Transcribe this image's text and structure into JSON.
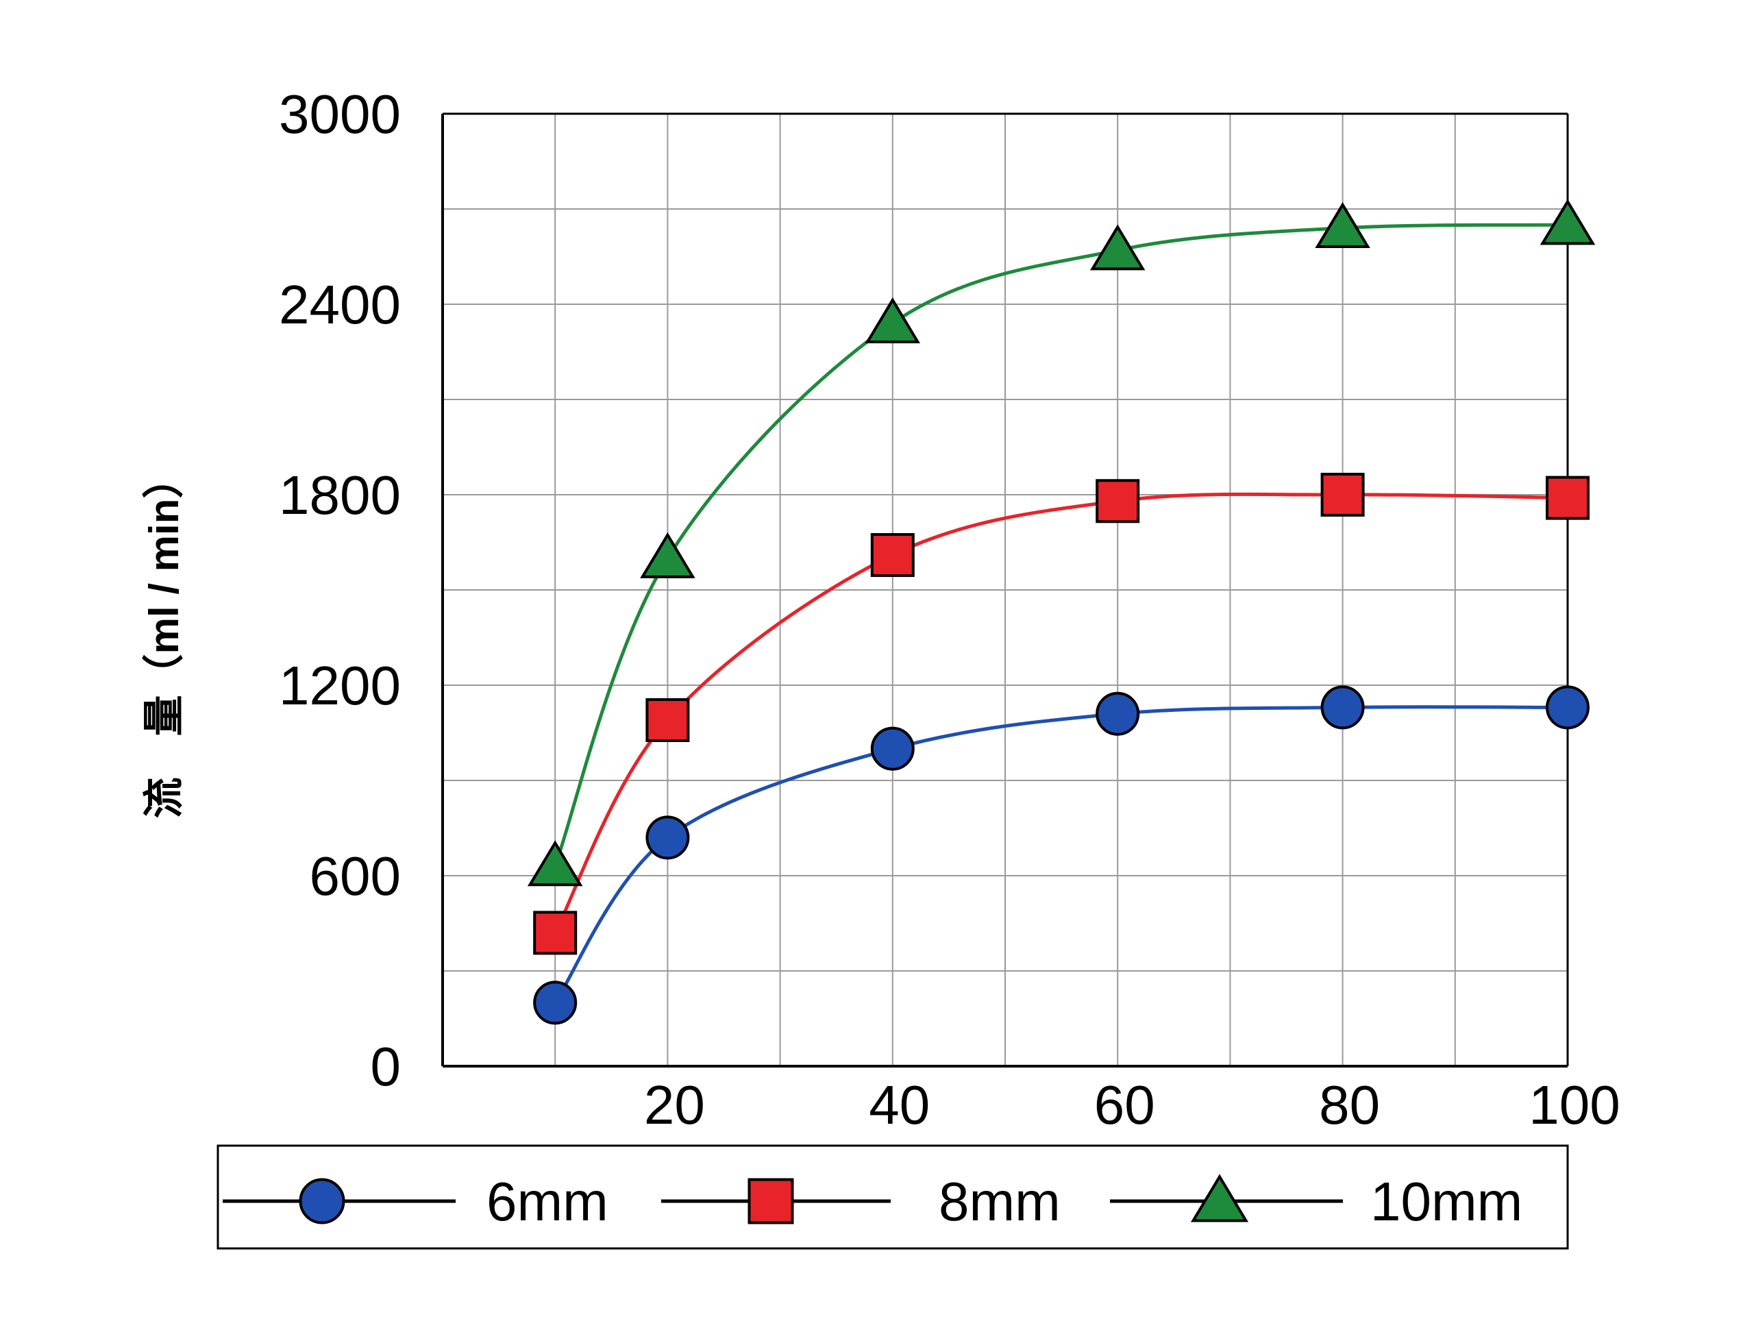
{
  "chart_data": {
    "type": "line",
    "title": "",
    "xlabel": "",
    "ylabel": "流　量（ml / min）",
    "xlim": [
      0,
      100
    ],
    "ylim": [
      0,
      3000
    ],
    "x_ticks": [
      20,
      40,
      60,
      80,
      100
    ],
    "y_ticks": [
      0,
      600,
      1200,
      1800,
      2400,
      3000
    ],
    "x_tick_labels": [
      "20",
      "40",
      "60",
      "80",
      "100"
    ],
    "y_tick_labels": [
      "0",
      "600",
      "1200",
      "1800",
      "2400",
      "3000"
    ],
    "x_grid_step": 10,
    "y_grid_step": 300,
    "grid": true,
    "legend_position": "bottom",
    "series": [
      {
        "name": "6mm",
        "marker": "circle",
        "color": "#1f4fb0",
        "line_color": "#1f4fb0",
        "x": [
          10,
          20,
          40,
          60,
          80,
          100
        ],
        "y": [
          200,
          720,
          1000,
          1110,
          1130,
          1130
        ]
      },
      {
        "name": "8mm",
        "marker": "square",
        "color": "#e8232a",
        "line_color": "#e8232a",
        "x": [
          10,
          20,
          40,
          60,
          80,
          100
        ],
        "y": [
          420,
          1090,
          1610,
          1780,
          1800,
          1790
        ]
      },
      {
        "name": "10mm",
        "marker": "triangle",
        "color": "#1e8a3c",
        "line_color": "#1e8a3c",
        "x": [
          10,
          20,
          40,
          60,
          80,
          100
        ],
        "y": [
          630,
          1600,
          2340,
          2570,
          2640,
          2650
        ]
      }
    ]
  }
}
